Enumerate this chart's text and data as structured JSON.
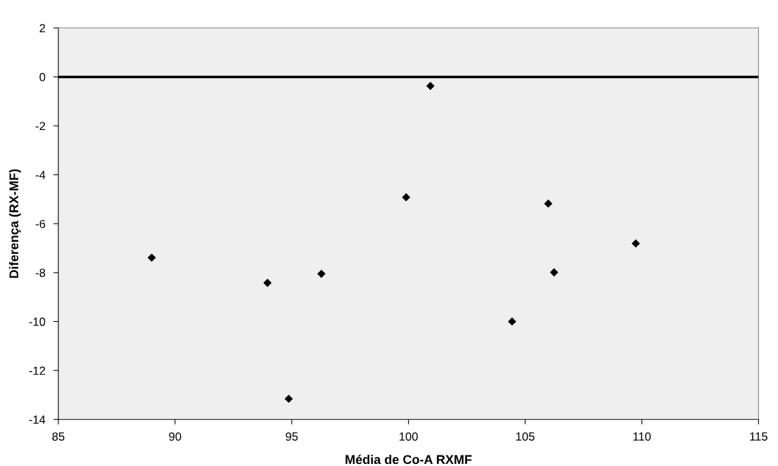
{
  "chart_data": {
    "type": "scatter",
    "xlabel": "Média de Co-A RXMF",
    "ylabel": "Diferença (RX-MF)",
    "x": [
      89.0,
      93.96,
      94.87,
      96.27,
      99.9,
      100.94,
      104.44,
      105.99,
      106.24,
      109.74
    ],
    "series": [
      {
        "color": "#000000",
        "values": [
          -7.39,
          -8.42,
          -13.16,
          -8.05,
          -4.92,
          -0.37,
          -10.0,
          -5.18,
          -7.99,
          -6.81
        ]
      }
    ],
    "marker": "diamond",
    "xlim": [
      85,
      115
    ],
    "xticks": [
      85,
      90,
      95,
      100,
      105,
      110,
      115
    ],
    "ylim": [
      -14,
      2
    ],
    "yticks": [
      -14,
      -12,
      -10,
      -8,
      -6,
      -4,
      -2,
      0,
      2
    ],
    "ref_lines": [
      {
        "axis": "y",
        "value": 0,
        "color": "#000000",
        "line_style": "solid"
      }
    ]
  }
}
